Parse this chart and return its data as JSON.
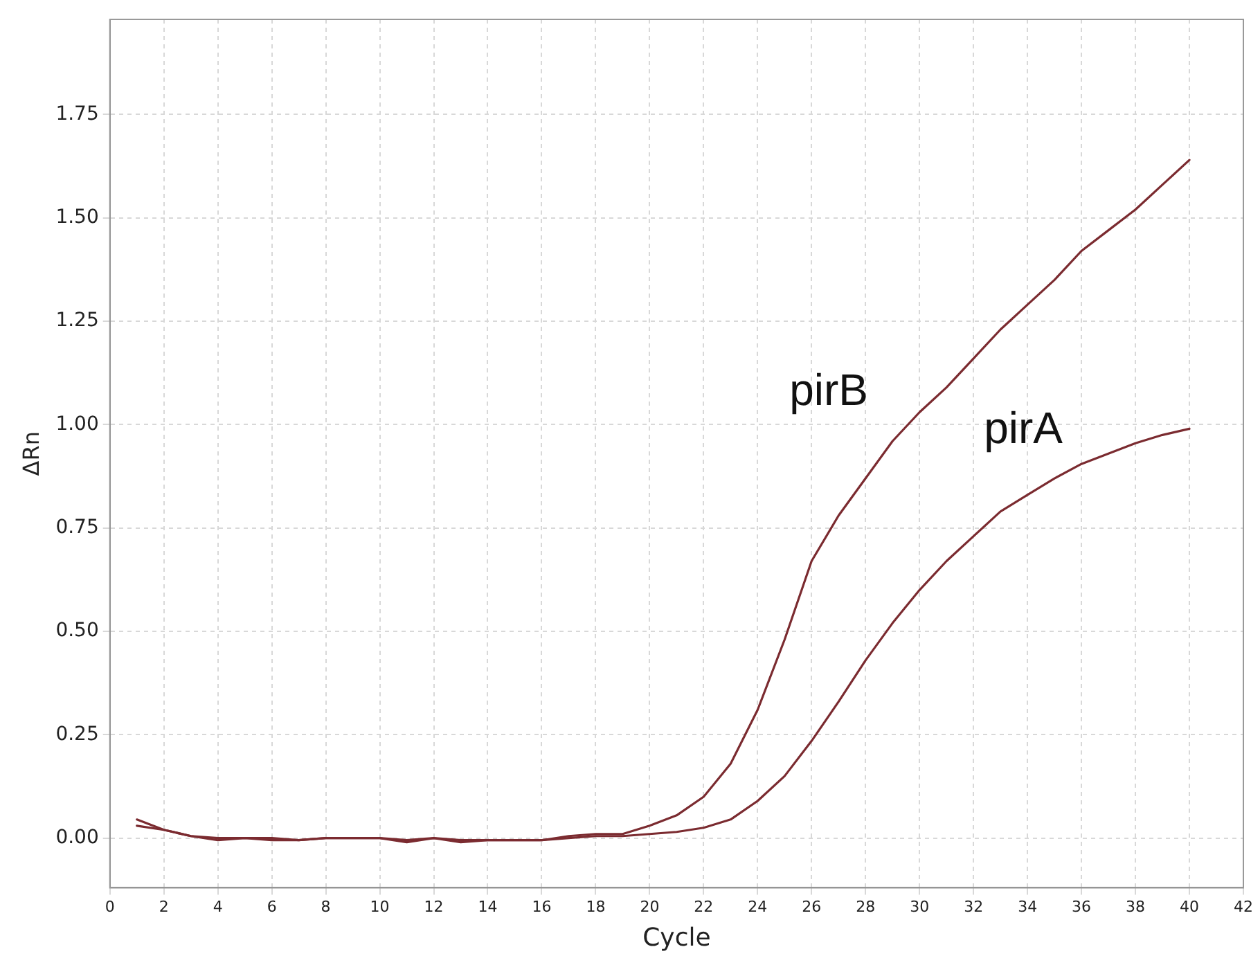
{
  "chart_data": {
    "type": "line",
    "xlabel": "Cycle",
    "ylabel": "ΔRn",
    "x": [
      1,
      2,
      3,
      4,
      5,
      6,
      7,
      8,
      9,
      10,
      11,
      12,
      13,
      14,
      15,
      16,
      17,
      18,
      19,
      20,
      21,
      22,
      23,
      24,
      25,
      26,
      27,
      28,
      29,
      30,
      31,
      32,
      33,
      34,
      35,
      36,
      37,
      38,
      39,
      40
    ],
    "series": [
      {
        "name": "pirB",
        "color": "#7b2b30",
        "values": [
          0.045,
          0.02,
          0.005,
          -0.005,
          0,
          -0.005,
          -0.005,
          0,
          0,
          0,
          -0.01,
          0,
          -0.01,
          -0.005,
          -0.005,
          -0.005,
          0.005,
          0.01,
          0.01,
          0.03,
          0.055,
          0.1,
          0.18,
          0.31,
          0.48,
          0.67,
          0.78,
          0.87,
          0.96,
          1.03,
          1.09,
          1.16,
          1.23,
          1.29,
          1.35,
          1.42,
          1.47,
          1.52,
          1.58,
          1.64
        ]
      },
      {
        "name": "pirA",
        "color": "#7b2b30",
        "values": [
          0.03,
          0.02,
          0.005,
          0,
          0,
          0,
          -0.005,
          0,
          0,
          0,
          -0.005,
          0,
          -0.005,
          -0.005,
          -0.005,
          -0.005,
          0,
          0.005,
          0.005,
          0.01,
          0.015,
          0.025,
          0.045,
          0.09,
          0.15,
          0.235,
          0.33,
          0.43,
          0.52,
          0.6,
          0.67,
          0.73,
          0.79,
          0.83,
          0.87,
          0.905,
          0.93,
          0.955,
          0.975,
          0.99
        ]
      }
    ],
    "xlim": [
      0,
      42
    ],
    "xticks": [
      0,
      2,
      4,
      6,
      8,
      10,
      12,
      14,
      16,
      18,
      20,
      22,
      24,
      26,
      28,
      30,
      32,
      34,
      36,
      38,
      40,
      42
    ],
    "ylim": [
      -0.12,
      1.98
    ],
    "yticks": [
      {
        "value": 0,
        "label": "0.00"
      },
      {
        "value": 0.25,
        "label": "0.25"
      },
      {
        "value": 0.5,
        "label": "0.50"
      },
      {
        "value": 0.75,
        "label": "0.75"
      },
      {
        "value": 1,
        "label": "1.00"
      },
      {
        "value": 1.25,
        "label": "1.25"
      },
      {
        "value": 1.5,
        "label": "1.50"
      },
      {
        "value": 1.75,
        "label": "1.75"
      }
    ],
    "grid": true,
    "legend": false,
    "marker": "none",
    "line_style": "solid"
  }
}
